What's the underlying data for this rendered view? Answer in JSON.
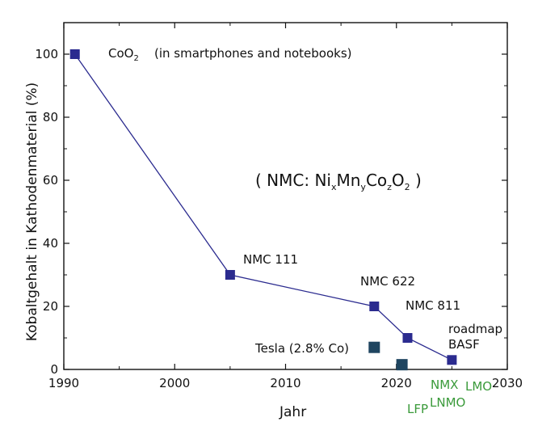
{
  "chart_data": {
    "type": "scatter",
    "xlabel": "Jahr",
    "ylabel": "Kobaltgehalt in Kathodenmaterial (%)",
    "xlim": [
      1990,
      2030
    ],
    "ylim": [
      0,
      110
    ],
    "xticks": [
      1990,
      2000,
      2010,
      2020,
      2030
    ],
    "yticks": [
      0,
      20,
      40,
      60,
      80,
      100
    ],
    "grid": false,
    "colors": {
      "main": "#2b2b8f",
      "line": "#2b2b8f",
      "dark": "#1f4560",
      "green": "#3a9a3a"
    },
    "series": [
      {
        "connected": true,
        "points": [
          {
            "x": 1991,
            "y": 100,
            "label": "CoO",
            "sub": "2"
          },
          {
            "x": 2005,
            "y": 30,
            "label": "NMC 111"
          },
          {
            "x": 2018,
            "y": 20,
            "label": "NMC 622"
          },
          {
            "x": 2021,
            "y": 10,
            "label": "NMC 811"
          },
          {
            "x": 2025,
            "y": 3,
            "label": "roadmap",
            "label2": "BASF"
          }
        ]
      },
      {
        "connected": false,
        "points": [
          {
            "x": 2018,
            "y": 7,
            "label": "Tesla (2.8% Co)"
          },
          {
            "x": 2020.5,
            "y": 1.5,
            "label": ""
          }
        ]
      }
    ],
    "annotations": {
      "coo2_note": "(in smartphones and notebooks)",
      "formula": {
        "prefix": "( NMC: Ni",
        "x": "x",
        "mn": "Mn",
        "y": "y",
        "co": "Co",
        "z": "z",
        "o": "O",
        "two": "2",
        "suffix": " )"
      },
      "green_labels": [
        "NMX",
        "LMO",
        "LFP",
        "LNMO"
      ]
    }
  }
}
